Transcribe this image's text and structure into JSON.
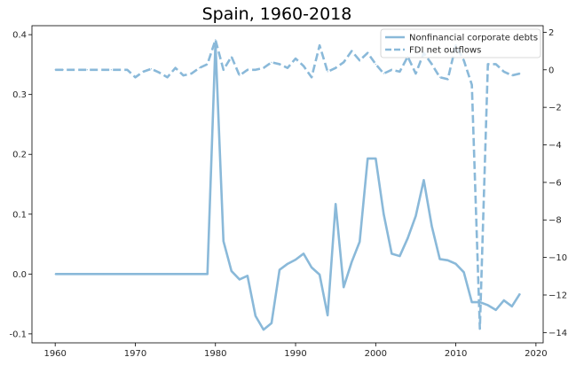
{
  "chart_data": {
    "type": "line",
    "title": "Spain, 1960-2018",
    "xlabel": "",
    "ylabel_left": "",
    "ylabel_right": "",
    "x_ticks": [
      1960,
      1970,
      1980,
      1990,
      2000,
      2010,
      2020
    ],
    "y_left_ticks": [
      -0.1,
      0.0,
      0.1,
      0.2,
      0.3,
      0.4
    ],
    "y_right_ticks": [
      -14,
      -12,
      -10,
      -8,
      -6,
      -4,
      -2,
      0,
      2
    ],
    "xlim": [
      1957.1,
      2020.9
    ],
    "ylim_left": [
      -0.115,
      0.415
    ],
    "ylim_right": [
      -14.55,
      2.35
    ],
    "grid": false,
    "legend_position": "top-right",
    "line_color": "#8ab9d9",
    "series": [
      {
        "name": "Nonfinancial corporate debts",
        "axis": "left",
        "style": "solid",
        "x": [
          1960,
          1961,
          1962,
          1963,
          1964,
          1965,
          1966,
          1967,
          1968,
          1969,
          1970,
          1971,
          1972,
          1973,
          1974,
          1975,
          1976,
          1977,
          1978,
          1979,
          1980,
          1981,
          1982,
          1983,
          1984,
          1985,
          1986,
          1987,
          1988,
          1989,
          1990,
          1991,
          1992,
          1993,
          1994,
          1995,
          1996,
          1997,
          1998,
          1999,
          2000,
          2001,
          2002,
          2003,
          2004,
          2005,
          2006,
          2007,
          2008,
          2009,
          2010,
          2011,
          2012,
          2013,
          2014,
          2015,
          2016,
          2017,
          2018
        ],
        "y": [
          0,
          0,
          0,
          0,
          0,
          0,
          0,
          0,
          0,
          0,
          0,
          0,
          0,
          0,
          0,
          0,
          0,
          0,
          0,
          0,
          0.386,
          0.055,
          0.005,
          -0.009,
          -0.003,
          -0.07,
          -0.093,
          -0.082,
          0.007,
          0.017,
          0.024,
          0.034,
          0.011,
          -0.001,
          -0.069,
          0.117,
          -0.022,
          0.02,
          0.054,
          0.193,
          0.193,
          0.1,
          0.034,
          0.03,
          0.06,
          0.097,
          0.157,
          0.08,
          0.025,
          0.023,
          0.017,
          0.003,
          -0.047,
          -0.047,
          -0.052,
          -0.06,
          -0.044,
          -0.054,
          -0.033
        ]
      },
      {
        "name": "FDI net outflows",
        "axis": "right",
        "style": "dashed",
        "x": [
          1960,
          1961,
          1962,
          1963,
          1964,
          1965,
          1966,
          1967,
          1968,
          1969,
          1970,
          1971,
          1972,
          1973,
          1974,
          1975,
          1976,
          1977,
          1978,
          1979,
          1980,
          1981,
          1982,
          1983,
          1984,
          1985,
          1986,
          1987,
          1988,
          1989,
          1990,
          1991,
          1992,
          1993,
          1994,
          1995,
          1996,
          1997,
          1998,
          1999,
          2000,
          2001,
          2002,
          2003,
          2004,
          2005,
          2006,
          2007,
          2008,
          2009,
          2010,
          2011,
          2012,
          2013,
          2014,
          2015,
          2016,
          2017,
          2018
        ],
        "y": [
          0,
          0,
          0,
          0,
          0,
          0,
          0,
          0,
          0,
          0,
          -0.4,
          -0.1,
          0.05,
          -0.15,
          -0.4,
          0.1,
          -0.3,
          -0.2,
          0.1,
          0.3,
          1.6,
          0.0,
          0.7,
          -0.3,
          0.0,
          0.0,
          0.1,
          0.4,
          0.3,
          0.1,
          0.6,
          0.2,
          -0.4,
          1.3,
          -0.1,
          0.1,
          0.4,
          1.0,
          0.5,
          0.9,
          0.3,
          -0.2,
          0.0,
          -0.1,
          0.7,
          -0.2,
          0.9,
          0.3,
          -0.4,
          -0.5,
          1.3,
          0.5,
          -0.8,
          -13.8,
          0.3,
          0.3,
          -0.1,
          -0.3,
          -0.2
        ]
      }
    ]
  }
}
